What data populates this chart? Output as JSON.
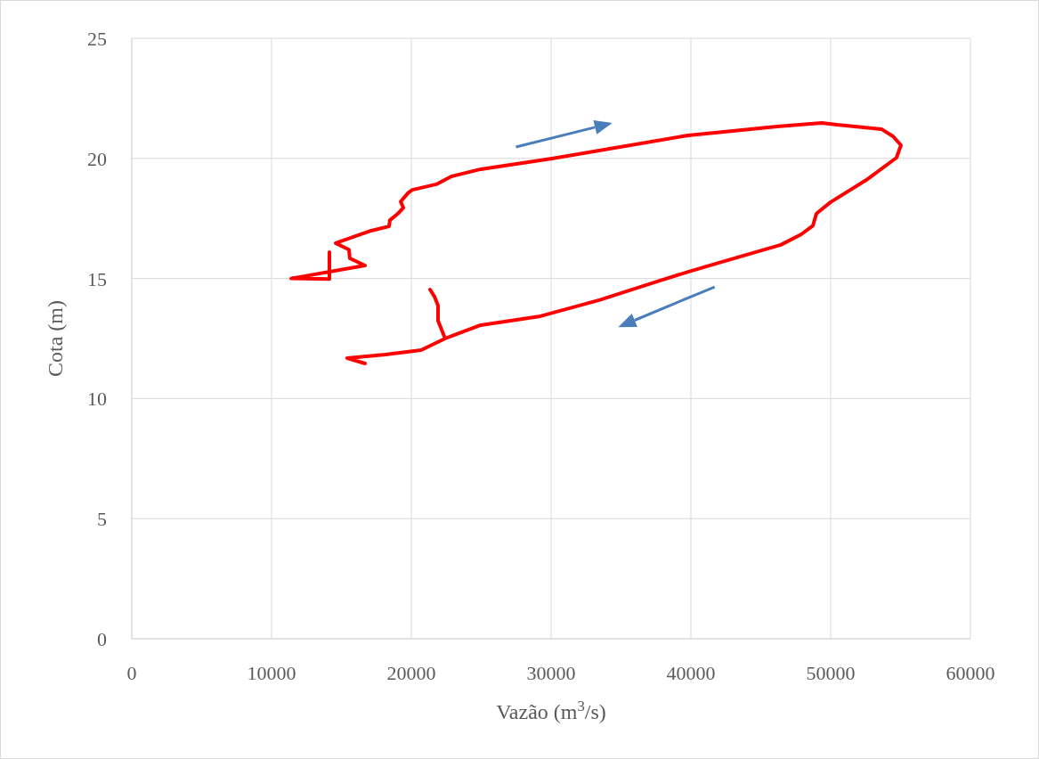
{
  "chart_data": {
    "type": "line",
    "xlabel": "Vazão (m$^{3}$/s)",
    "ylabel": "Cota (m)",
    "xlim": [
      0,
      60000
    ],
    "xticks": [
      0,
      10000,
      20000,
      30000,
      40000,
      50000,
      60000
    ],
    "ylim": [
      0,
      25
    ],
    "yticks": [
      0,
      5,
      10,
      15,
      20,
      25
    ],
    "grid": true,
    "marker": "none",
    "line_style": "solid",
    "series": [
      {
        "color": "#ff0000",
        "x": [
          14140,
          14140,
          11400,
          16690,
          15600,
          15540,
          14590,
          15220,
          17130,
          18400,
          18470,
          19040,
          19430,
          19240,
          19750,
          20060,
          21780,
          22870,
          24970,
          26240,
          30060,
          39810,
          46180,
          49360,
          50450,
          53630,
          54460,
          55030,
          54710,
          52550,
          50000,
          48980,
          48730,
          47900,
          46430,
          41970,
          39810,
          37710,
          33440,
          29240,
          24970,
          22420,
          20700,
          18150,
          15410,
          16690,
          null,
          22420,
          21910,
          21910,
          21660,
          21340
        ],
        "values": [
          16.1,
          14.98,
          15.0,
          15.54,
          15.84,
          16.2,
          16.47,
          16.6,
          16.99,
          17.17,
          17.43,
          17.7,
          17.95,
          18.2,
          18.55,
          18.69,
          18.92,
          19.25,
          19.55,
          19.66,
          19.99,
          20.96,
          21.33,
          21.48,
          21.4,
          21.22,
          20.92,
          20.55,
          20.03,
          19.1,
          18.18,
          17.7,
          17.2,
          16.84,
          16.4,
          15.65,
          15.28,
          14.9,
          14.1,
          13.43,
          13.06,
          12.5,
          12.02,
          11.83,
          11.68,
          11.46,
          null,
          12.5,
          13.24,
          13.87,
          14.24,
          14.54
        ]
      }
    ]
  }
}
